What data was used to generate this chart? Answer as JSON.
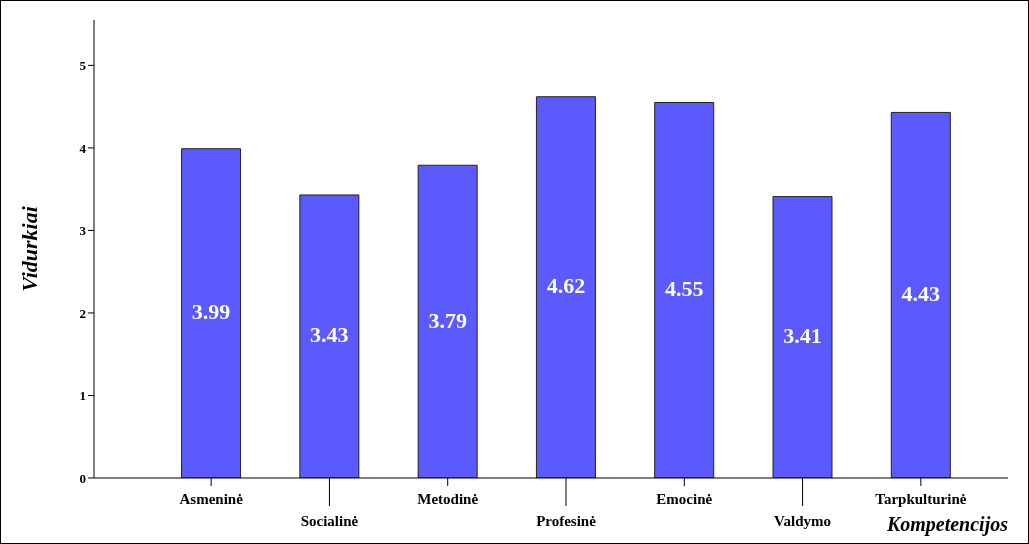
{
  "chart_data": {
    "type": "bar",
    "xlabel": "Kompetencijos",
    "ylabel": "Vidurkiai",
    "categories": [
      "Asmeninė",
      "Socialinė",
      "Metodinė",
      "Profesinė",
      "Emocinė",
      "Valdymo",
      "Tarpkulturinė"
    ],
    "values": [
      3.99,
      3.43,
      3.79,
      4.62,
      4.55,
      3.41,
      4.43
    ],
    "color": "#5a5aff",
    "ylim": [
      0,
      5.55
    ],
    "yticks": [
      0,
      1,
      2,
      3,
      4,
      5
    ],
    "grid": false,
    "data_labels": true
  }
}
